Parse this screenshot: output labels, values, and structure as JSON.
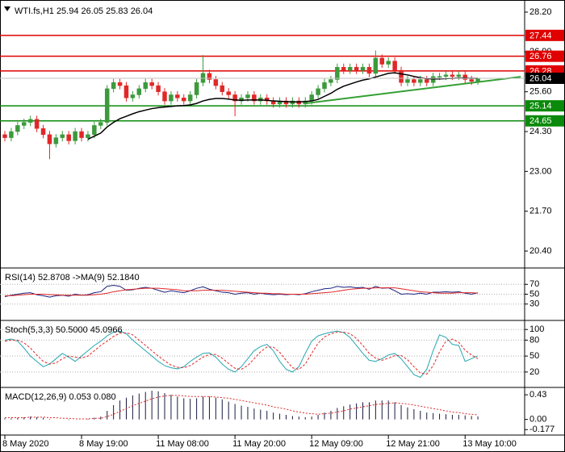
{
  "chart_data": [
    {
      "type": "candlestick",
      "title": "WTI.fs,H1  25.94 26.05 25.83 26.04",
      "categories": [
        "8 May 2020",
        null,
        null,
        null,
        null,
        null,
        null,
        null,
        null,
        null,
        null,
        null,
        "8 May 19:00",
        null,
        null,
        null,
        null,
        null,
        null,
        null,
        null,
        null,
        null,
        null,
        "11 May 08:00",
        null,
        null,
        null,
        null,
        null,
        null,
        null,
        null,
        null,
        null,
        null,
        "11 May 20:00",
        null,
        null,
        null,
        null,
        null,
        null,
        null,
        null,
        null,
        null,
        null,
        "12 May 09:00",
        null,
        null,
        null,
        null,
        null,
        null,
        null,
        null,
        null,
        null,
        null,
        "12 May 21:00",
        null,
        null,
        null,
        null,
        null,
        null,
        null,
        null,
        null,
        null,
        null,
        "13 May 10:00",
        null,
        null
      ],
      "open": [
        24.2,
        24.1,
        24.3,
        24.5,
        24.6,
        24.7,
        24.4,
        24.2,
        23.9,
        24.1,
        24.2,
        24.0,
        24.3,
        24.1,
        24.2,
        24.5,
        24.6,
        25.7,
        25.9,
        25.8,
        25.4,
        25.5,
        25.7,
        25.9,
        25.8,
        25.6,
        25.3,
        25.5,
        25.4,
        25.3,
        25.5,
        25.9,
        26.2,
        26.0,
        25.8,
        25.6,
        25.5,
        25.3,
        25.4,
        25.5,
        25.3,
        25.4,
        25.3,
        25.2,
        25.3,
        25.2,
        25.3,
        25.2,
        25.3,
        25.5,
        25.7,
        25.9,
        26.0,
        26.4,
        26.3,
        26.4,
        26.3,
        26.4,
        26.2,
        26.7,
        26.5,
        26.6,
        26.3,
        25.9,
        26.0,
        25.9,
        26.0,
        25.9,
        26.1,
        26.1,
        26.15,
        26.1,
        26.15,
        26.0,
        25.94
      ],
      "high": [
        24.32,
        24.42,
        24.62,
        24.72,
        24.82,
        24.82,
        24.52,
        24.32,
        24.22,
        24.32,
        24.32,
        24.42,
        24.42,
        24.32,
        24.62,
        24.72,
        25.82,
        26.02,
        26.02,
        25.92,
        25.62,
        25.82,
        26.02,
        26.02,
        25.92,
        25.72,
        25.62,
        25.62,
        25.52,
        25.62,
        26.02,
        26.8,
        26.32,
        26.12,
        25.92,
        25.72,
        25.62,
        25.52,
        25.62,
        25.62,
        25.52,
        25.52,
        25.42,
        25.42,
        25.42,
        25.42,
        25.42,
        25.42,
        25.62,
        25.82,
        26.02,
        26.12,
        26.52,
        26.52,
        26.52,
        26.52,
        26.52,
        26.52,
        26.95,
        26.82,
        26.72,
        26.72,
        26.42,
        26.12,
        26.12,
        26.12,
        26.12,
        26.22,
        26.22,
        26.27,
        26.27,
        26.27,
        26.27,
        26.12,
        26.05
      ],
      "low": [
        23.98,
        23.98,
        24.18,
        24.38,
        24.48,
        24.28,
        24.08,
        23.4,
        23.78,
        23.98,
        23.88,
        23.88,
        23.98,
        23.98,
        24.08,
        24.38,
        24.5,
        25.58,
        25.68,
        25.28,
        25.28,
        25.38,
        25.58,
        25.68,
        25.48,
        25.18,
        25.18,
        25.28,
        25.18,
        25.18,
        25.38,
        25.78,
        25.88,
        25.68,
        25.48,
        25.38,
        24.8,
        25.18,
        25.28,
        25.18,
        25.18,
        25.18,
        25.08,
        25.08,
        25.08,
        25.08,
        25.08,
        25.08,
        25.18,
        25.38,
        25.58,
        25.78,
        25.88,
        26.18,
        26.18,
        26.18,
        26.18,
        26.08,
        26.08,
        26.38,
        26.38,
        26.18,
        25.78,
        25.78,
        25.78,
        25.78,
        25.78,
        25.78,
        25.98,
        25.98,
        25.98,
        25.98,
        25.88,
        25.82,
        25.83
      ],
      "close": [
        24.1,
        24.3,
        24.5,
        24.6,
        24.7,
        24.4,
        24.2,
        23.9,
        24.1,
        24.2,
        24.0,
        24.3,
        24.1,
        24.2,
        24.5,
        24.6,
        25.7,
        25.9,
        25.8,
        25.4,
        25.5,
        25.7,
        25.9,
        25.8,
        25.6,
        25.3,
        25.5,
        25.4,
        25.3,
        25.5,
        25.9,
        26.2,
        26.0,
        25.8,
        25.6,
        25.5,
        25.3,
        25.4,
        25.5,
        25.3,
        25.4,
        25.3,
        25.2,
        25.3,
        25.2,
        25.3,
        25.2,
        25.3,
        25.5,
        25.7,
        25.9,
        26.0,
        26.4,
        26.3,
        26.4,
        26.3,
        26.4,
        26.2,
        26.7,
        26.5,
        26.6,
        26.3,
        25.9,
        26.0,
        25.9,
        26.0,
        25.9,
        26.1,
        26.1,
        26.15,
        26.1,
        26.15,
        26.0,
        25.94,
        26.04
      ],
      "up_color": "#3c9a3c",
      "down_color": "#e02828",
      "ma": {
        "color": "#000000",
        "values": [
          null,
          null,
          null,
          null,
          null,
          null,
          null,
          null,
          null,
          null,
          null,
          null,
          null,
          24.05,
          24.15,
          24.25,
          24.45,
          24.6,
          24.72,
          24.8,
          24.88,
          24.95,
          25.0,
          25.05,
          25.08,
          25.1,
          25.12,
          25.14,
          25.15,
          25.17,
          25.22,
          25.3,
          25.35,
          25.38,
          25.38,
          25.36,
          25.33,
          25.32,
          25.33,
          25.33,
          25.33,
          25.32,
          25.3,
          25.29,
          25.28,
          25.27,
          25.27,
          25.28,
          25.3,
          25.35,
          25.45,
          25.55,
          25.68,
          25.78,
          25.85,
          25.92,
          25.98,
          26.02,
          26.08,
          26.14,
          26.2,
          26.22,
          26.18,
          26.15,
          26.1,
          26.06,
          26.03,
          26.02,
          26.02,
          26.03,
          26.04,
          26.05,
          26.05,
          26.04,
          26.04
        ]
      },
      "trendline": {
        "color": "#33a033",
        "x": [
          47,
          80.7
        ],
        "values": [
          25.22,
          26.09
        ]
      },
      "levels": [
        {
          "value": 27.44,
          "color": "#e00000"
        },
        {
          "value": 26.76,
          "color": "#e00000"
        },
        {
          "value": 26.28,
          "color": "#e00000"
        },
        {
          "value": 25.14,
          "color": "#0a8a0a"
        },
        {
          "value": 24.65,
          "color": "#0a8a0a"
        }
      ],
      "ylim": [
        19.9,
        28.49
      ],
      "yticks": [
        {
          "value": 28.2,
          "label": "28.20"
        },
        {
          "value": 26.9,
          "label": "26.90"
        },
        {
          "value": 25.6,
          "label": "25.60"
        },
        {
          "value": 24.3,
          "label": "24.30"
        },
        {
          "value": 23.0,
          "label": "23.00"
        },
        {
          "value": 21.7,
          "label": "21.70"
        },
        {
          "value": 20.4,
          "label": "20.40"
        }
      ]
    },
    {
      "type": "line",
      "title": "RSI(14) 52.8708  ->MA(9) 52.1840",
      "ylim": [
        0,
        100
      ],
      "yticks": [
        70,
        50,
        30
      ],
      "grid": true,
      "series": [
        {
          "color": "#1a237e",
          "style": "solid",
          "values": [
            45,
            48,
            50,
            52,
            53,
            49,
            47,
            44,
            47,
            48,
            46,
            50,
            48,
            49,
            53,
            55,
            66,
            68,
            66,
            58,
            59,
            62,
            64,
            62,
            58,
            54,
            57,
            55,
            53,
            57,
            62,
            65,
            60,
            57,
            54,
            53,
            50,
            52,
            53,
            50,
            52,
            50,
            49,
            50,
            49,
            50,
            49,
            51,
            55,
            58,
            61,
            62,
            66,
            64,
            65,
            63,
            64,
            60,
            66,
            62,
            63,
            57,
            50,
            51,
            50,
            52,
            50,
            54,
            54,
            55,
            54,
            55,
            52,
            50,
            52.87
          ]
        },
        {
          "color": "#e02828",
          "style": "solid",
          "values": [
            47,
            47,
            48,
            49,
            50,
            50,
            50,
            49,
            49,
            48,
            48,
            48,
            48,
            48,
            49,
            50,
            52,
            55,
            57,
            59,
            60,
            61,
            62,
            62,
            62,
            61,
            60,
            59,
            57,
            57,
            57,
            58,
            58,
            58,
            58,
            57,
            56,
            55,
            54,
            53,
            52,
            52,
            51,
            51,
            50,
            50,
            50,
            50,
            51,
            52,
            53,
            54,
            56,
            58,
            60,
            61,
            62,
            62,
            63,
            63,
            63,
            63,
            61,
            59,
            57,
            55,
            54,
            53,
            52,
            52,
            52,
            53,
            53,
            53,
            52.18
          ]
        }
      ]
    },
    {
      "type": "line",
      "title": "Stoch(5,3,3) 50.5000 45.0966",
      "ylim": [
        -6,
        114
      ],
      "yticks": [
        100,
        80,
        50,
        20
      ],
      "grid": true,
      "series": [
        {
          "color": "#26a6b0",
          "style": "solid",
          "values": [
            80,
            82,
            78,
            65,
            50,
            40,
            30,
            35,
            45,
            55,
            48,
            40,
            50,
            60,
            70,
            78,
            88,
            95,
            97,
            92,
            80,
            70,
            60,
            50,
            40,
            32,
            28,
            26,
            30,
            40,
            48,
            55,
            56,
            48,
            35,
            25,
            20,
            30,
            45,
            60,
            68,
            72,
            60,
            40,
            25,
            20,
            30,
            55,
            78,
            88,
            92,
            95,
            97,
            94,
            85,
            70,
            55,
            42,
            40,
            45,
            52,
            55,
            45,
            30,
            15,
            10,
            25,
            60,
            90,
            85,
            72,
            70,
            40,
            45,
            50.5
          ]
        },
        {
          "color": "#e02828",
          "style": "dashed",
          "values": [
            78,
            80,
            80,
            75,
            65,
            52,
            40,
            35,
            37,
            45,
            50,
            48,
            46,
            50,
            60,
            70,
            78,
            87,
            93,
            94,
            90,
            80,
            70,
            60,
            50,
            41,
            33,
            29,
            28,
            32,
            40,
            48,
            53,
            53,
            46,
            36,
            27,
            25,
            32,
            45,
            58,
            67,
            67,
            57,
            42,
            28,
            25,
            35,
            55,
            74,
            86,
            92,
            95,
            95,
            92,
            83,
            70,
            55,
            46,
            42,
            46,
            51,
            51,
            43,
            30,
            18,
            16,
            32,
            58,
            78,
            82,
            76,
            61,
            52,
            45.1
          ]
        }
      ]
    },
    {
      "type": "macd",
      "title": "MACD(12,26,9) 0.053 0.080",
      "ylim": [
        -0.272,
        0.53
      ],
      "yticks": [
        0.43,
        {
          "value": 0,
          "label": "0.00"
        },
        -0.177
      ],
      "series": [
        {
          "color": "#1a1a40",
          "style": "bar",
          "values": [
            0.02,
            0.02,
            0.03,
            0.04,
            0.05,
            0.04,
            0.03,
            0.01,
            0.0,
            0.0,
            -0.01,
            0.0,
            0.0,
            0.01,
            0.03,
            0.05,
            0.15,
            0.25,
            0.33,
            0.38,
            0.42,
            0.45,
            0.48,
            0.5,
            0.49,
            0.46,
            0.43,
            0.4,
            0.37,
            0.36,
            0.37,
            0.4,
            0.4,
            0.38,
            0.35,
            0.31,
            0.27,
            0.24,
            0.22,
            0.19,
            0.17,
            0.15,
            0.12,
            0.1,
            0.08,
            0.06,
            0.05,
            0.04,
            0.05,
            0.08,
            0.12,
            0.15,
            0.2,
            0.23,
            0.26,
            0.28,
            0.3,
            0.3,
            0.33,
            0.33,
            0.33,
            0.3,
            0.25,
            0.21,
            0.18,
            0.15,
            0.12,
            0.11,
            0.1,
            0.09,
            0.08,
            0.08,
            0.07,
            0.06,
            0.053
          ]
        },
        {
          "color": "#e02828",
          "style": "dotted",
          "values": [
            0.03,
            0.03,
            0.03,
            0.03,
            0.04,
            0.04,
            0.04,
            0.03,
            0.03,
            0.02,
            0.02,
            0.01,
            0.01,
            0.01,
            0.02,
            0.02,
            0.05,
            0.09,
            0.14,
            0.19,
            0.24,
            0.28,
            0.32,
            0.36,
            0.39,
            0.41,
            0.42,
            0.42,
            0.41,
            0.4,
            0.4,
            0.4,
            0.4,
            0.39,
            0.38,
            0.37,
            0.35,
            0.33,
            0.31,
            0.29,
            0.27,
            0.25,
            0.22,
            0.2,
            0.18,
            0.15,
            0.13,
            0.11,
            0.1,
            0.09,
            0.1,
            0.11,
            0.13,
            0.15,
            0.18,
            0.2,
            0.22,
            0.24,
            0.26,
            0.27,
            0.28,
            0.29,
            0.28,
            0.27,
            0.25,
            0.23,
            0.21,
            0.19,
            0.17,
            0.15,
            0.13,
            0.12,
            0.1,
            0.09,
            0.08
          ]
        }
      ]
    }
  ]
}
